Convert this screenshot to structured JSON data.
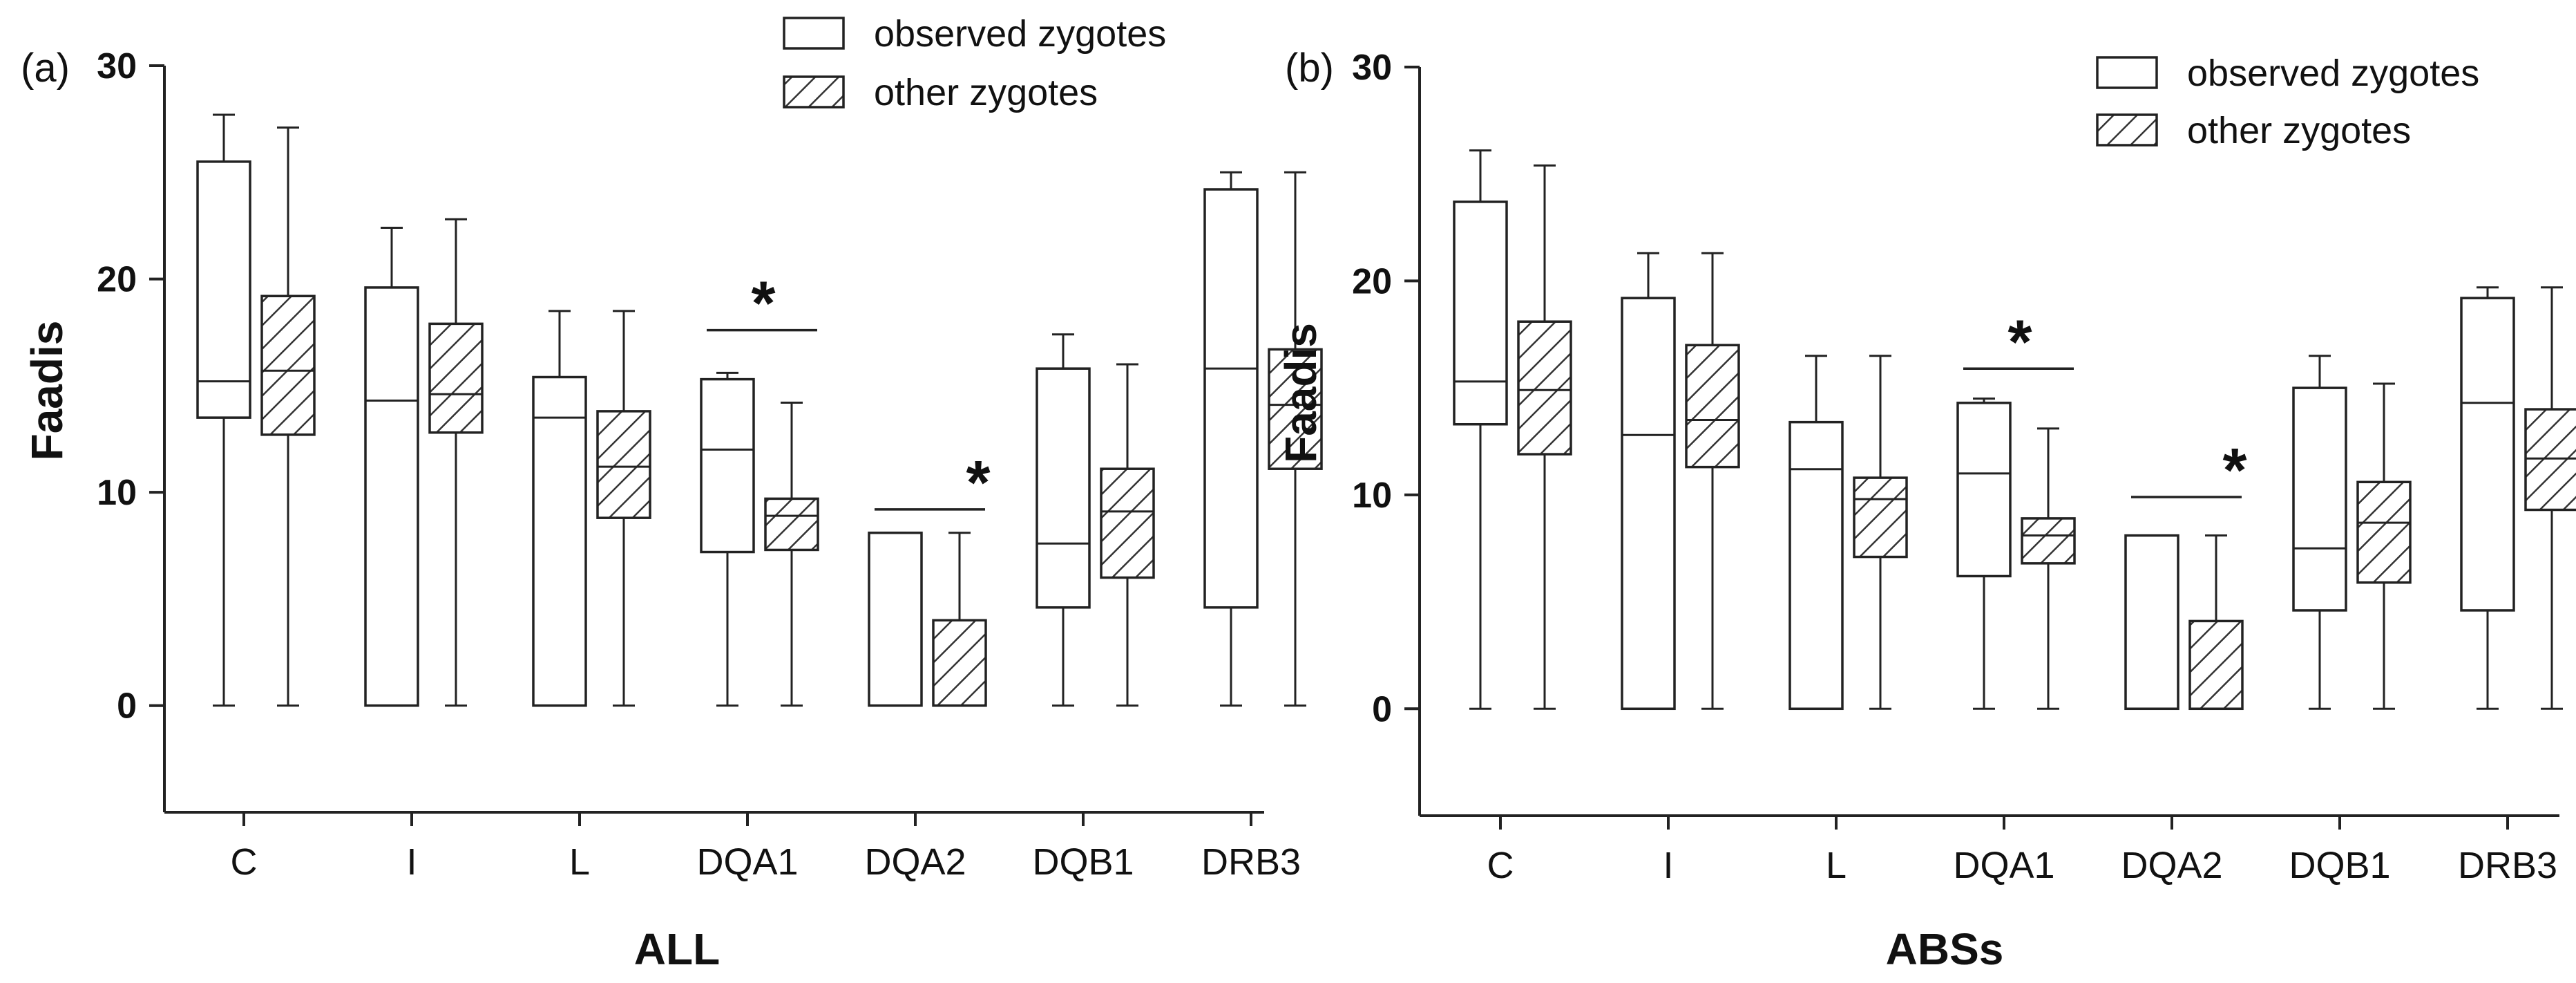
{
  "legend": {
    "observed": "observed zygotes",
    "other": "other zygotes"
  },
  "colors": {
    "ink": "#222222",
    "observedFill": "#ffffff",
    "otherFill": "#ffffff",
    "hatch": "#333333"
  },
  "chart_data": [
    {
      "type": "box",
      "panel": "(a)",
      "xlabel": "ALL",
      "ylabel": "Faadis",
      "ylim": [
        -5,
        30
      ],
      "yticks": [
        0,
        10,
        20,
        30
      ],
      "categories": [
        "C",
        "I",
        "L",
        "DQA1",
        "DQA2",
        "DQB1",
        "DRB3"
      ],
      "series": [
        {
          "name": "observed zygotes",
          "boxes": [
            {
              "min": 0,
              "q1": 13.5,
              "median": 15.2,
              "q3": 25.5,
              "max": 27.7
            },
            {
              "min": 0,
              "q1": 0,
              "median": 14.3,
              "q3": 19.6,
              "max": 22.4
            },
            {
              "min": 0,
              "q1": 0,
              "median": 13.5,
              "q3": 15.4,
              "max": 18.5
            },
            {
              "min": 0,
              "q1": 7.2,
              "median": 12.0,
              "q3": 15.3,
              "max": 15.6
            },
            {
              "min": 0,
              "q1": 0,
              "median": 0,
              "q3": 8.1,
              "max": 8.1
            },
            {
              "min": 0,
              "q1": 4.6,
              "median": 7.6,
              "q3": 15.8,
              "max": 17.4
            },
            {
              "min": 0,
              "q1": 4.6,
              "median": 15.8,
              "q3": 24.2,
              "max": 25.0
            }
          ]
        },
        {
          "name": "other zygotes",
          "boxes": [
            {
              "min": 0,
              "q1": 12.7,
              "median": 15.7,
              "q3": 19.2,
              "max": 27.1
            },
            {
              "min": 0,
              "q1": 12.8,
              "median": 14.6,
              "q3": 17.9,
              "max": 22.8
            },
            {
              "min": 0,
              "q1": 8.8,
              "median": 11.2,
              "q3": 13.8,
              "max": 18.5
            },
            {
              "min": 0,
              "q1": 7.3,
              "median": 8.9,
              "q3": 9.7,
              "max": 14.2
            },
            {
              "min": 0,
              "q1": 0,
              "median": 0,
              "q3": 4.0,
              "max": 8.1
            },
            {
              "min": 0,
              "q1": 6.0,
              "median": 9.1,
              "q3": 11.1,
              "max": 16.0
            },
            {
              "min": 0,
              "q1": 11.1,
              "median": 14.1,
              "q3": 16.7,
              "max": 25.0
            }
          ]
        }
      ],
      "significance": [
        {
          "category": "DQA1",
          "label": "*",
          "y": 17.6
        },
        {
          "category": "DQA2",
          "label": "*",
          "y": 9.2
        }
      ]
    },
    {
      "type": "box",
      "panel": "(b)",
      "xlabel": "ABSs",
      "ylabel": "Faadis",
      "ylim": [
        -5,
        30
      ],
      "yticks": [
        0,
        10,
        20,
        30
      ],
      "categories": [
        "C",
        "I",
        "L",
        "DQA1",
        "DQA2",
        "DQB1",
        "DRB3"
      ],
      "series": [
        {
          "name": "observed zygotes",
          "boxes": [
            {
              "min": 0,
              "q1": 13.3,
              "median": 15.3,
              "q3": 23.7,
              "max": 26.1
            },
            {
              "min": 0,
              "q1": 0,
              "median": 12.8,
              "q3": 19.2,
              "max": 21.3
            },
            {
              "min": 0,
              "q1": 0,
              "median": 11.2,
              "q3": 13.4,
              "max": 16.5
            },
            {
              "min": 0,
              "q1": 6.2,
              "median": 11.0,
              "q3": 14.3,
              "max": 14.5
            },
            {
              "min": 0,
              "q1": 0,
              "median": 0,
              "q3": 8.1,
              "max": 8.1
            },
            {
              "min": 0,
              "q1": 4.6,
              "median": 7.5,
              "q3": 15.0,
              "max": 16.5
            },
            {
              "min": 0,
              "q1": 4.6,
              "median": 14.3,
              "q3": 19.2,
              "max": 19.7
            }
          ]
        },
        {
          "name": "other zygotes",
          "boxes": [
            {
              "min": 0,
              "q1": 11.9,
              "median": 14.9,
              "q3": 18.1,
              "max": 25.4
            },
            {
              "min": 0,
              "q1": 11.3,
              "median": 13.5,
              "q3": 17.0,
              "max": 21.3
            },
            {
              "min": 0,
              "q1": 7.1,
              "median": 9.8,
              "q3": 10.8,
              "max": 16.5
            },
            {
              "min": 0,
              "q1": 6.8,
              "median": 8.1,
              "q3": 8.9,
              "max": 13.1
            },
            {
              "min": 0,
              "q1": 0,
              "median": 0,
              "q3": 4.1,
              "max": 8.1
            },
            {
              "min": 0,
              "q1": 5.9,
              "median": 8.7,
              "q3": 10.6,
              "max": 15.2
            },
            {
              "min": 0,
              "q1": 9.3,
              "median": 11.7,
              "q3": 14.0,
              "max": 19.7
            }
          ]
        }
      ],
      "significance": [
        {
          "category": "DQA1",
          "label": "*",
          "y": 15.9
        },
        {
          "category": "DQA2",
          "label": "*",
          "y": 9.9
        }
      ]
    }
  ]
}
